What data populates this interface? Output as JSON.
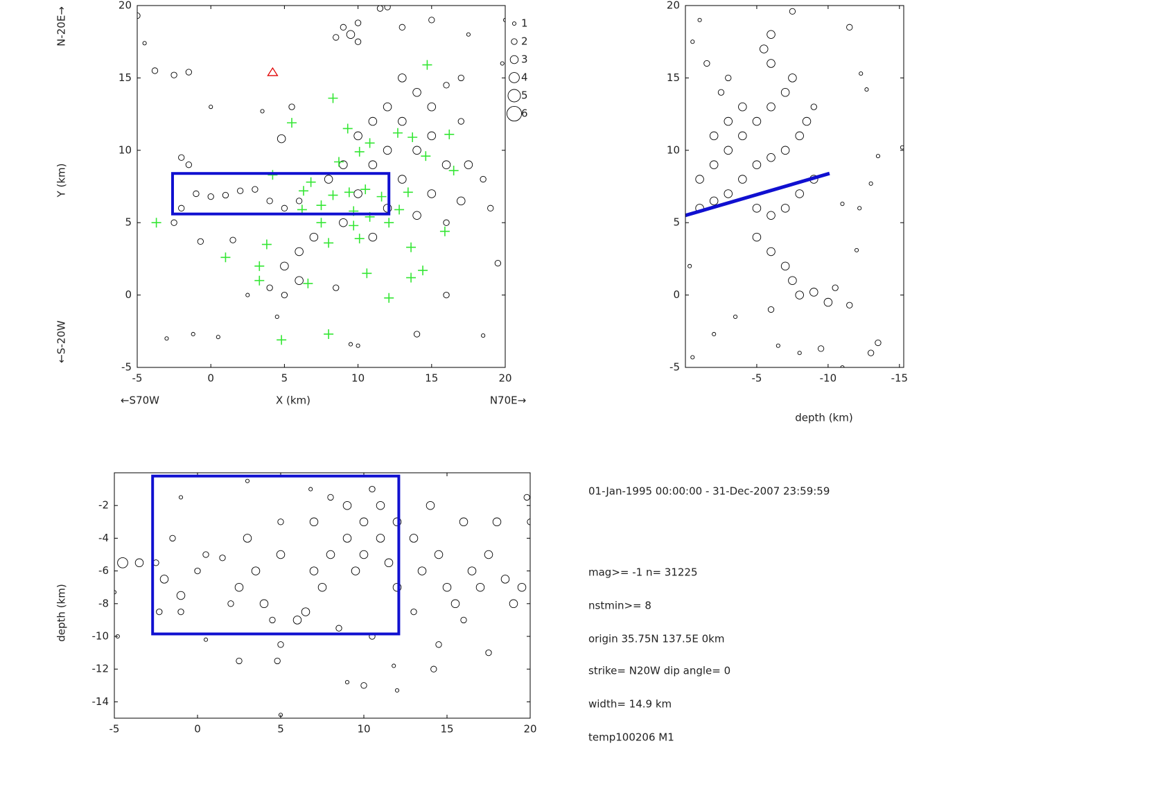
{
  "chart_data": [
    {
      "type": "scatter",
      "xlabel": "X (km)",
      "ylabel": "Y (km)",
      "x_left_label": "←S70W",
      "x_right_label": "N70E→",
      "y_top_label": "N-20E→",
      "y_bottom_label": "←S-20W",
      "xlim": [
        -5,
        20
      ],
      "ylim": [
        -5,
        20
      ],
      "xticks": [
        -5,
        0,
        5,
        10,
        15,
        20
      ],
      "yticks": [
        -5,
        0,
        5,
        10,
        15,
        20
      ],
      "legend": [
        1,
        2,
        3,
        4,
        5,
        6
      ],
      "series": [
        {
          "marker": "circle",
          "color": "#000000",
          "x": [
            9,
            9.5,
            10,
            8.5,
            10,
            11.5,
            12,
            13,
            14,
            15,
            16,
            17,
            12,
            11,
            13,
            15,
            17,
            10,
            12,
            14,
            16,
            17.5,
            18.5,
            9,
            11,
            13,
            15,
            17,
            19,
            8,
            10,
            12,
            14,
            16,
            9,
            11,
            7,
            6,
            5,
            6,
            4,
            5,
            8.5,
            10,
            9.5,
            14,
            18.5,
            16,
            19.5,
            -2,
            -1.5,
            -1,
            0,
            1,
            2,
            3,
            4,
            5,
            6,
            -2,
            -2.5,
            -5,
            -4.5,
            -3.8,
            -2.5,
            -1.5,
            0,
            3.5,
            5.5,
            4.8,
            -3,
            -1.2,
            0.5,
            1.5,
            -0.7,
            2.5,
            4.5,
            20,
            19.8,
            13,
            15,
            17.5
          ],
          "values": [
            18.5,
            18,
            17.5,
            17.8,
            18.8,
            19.8,
            19.9,
            15,
            14,
            13,
            14.5,
            15,
            13,
            12,
            12,
            11,
            12,
            11,
            10,
            10,
            9,
            9,
            8,
            9,
            9,
            8,
            7,
            6.5,
            6,
            8,
            7,
            6,
            5.5,
            5,
            5,
            4,
            4,
            3,
            2,
            1,
            0.5,
            0,
            0.5,
            -3.5,
            -3.4,
            -2.7,
            -2.8,
            0,
            2.2,
            9.5,
            9,
            7,
            6.8,
            6.9,
            7.2,
            7.3,
            6.5,
            6,
            6.5,
            6,
            5,
            19.3,
            17.4,
            15.5,
            15.2,
            15.4,
            13,
            12.7,
            13,
            10.8,
            -3,
            -2.7,
            -2.9,
            3.8,
            3.7,
            0,
            -1.5,
            19,
            16,
            18.5,
            19,
            18
          ],
          "sizes": [
            2,
            3,
            2,
            2,
            2,
            2,
            2,
            3,
            3,
            3,
            2,
            2,
            3,
            3,
            3,
            3,
            2,
            3,
            3,
            3,
            3,
            3,
            2,
            3,
            3,
            3,
            3,
            3,
            2,
            3,
            3,
            3,
            3,
            2,
            3,
            3,
            3,
            3,
            3,
            3,
            2,
            2,
            2,
            1,
            1,
            2,
            1,
            2,
            2,
            2,
            2,
            2,
            2,
            2,
            2,
            2,
            2,
            2,
            2,
            2,
            2,
            2,
            1,
            2,
            2,
            2,
            1,
            1,
            2,
            3,
            1,
            1,
            1,
            2,
            2,
            1,
            1,
            1,
            1,
            2,
            2,
            1
          ]
        },
        {
          "marker": "plus",
          "color": "#33e633",
          "x": [
            -3.7,
            1.0,
            3.3,
            3.3,
            3.8,
            4.2,
            5.5,
            6.3,
            6.2,
            6.8,
            7.5,
            7.5,
            8.0,
            8.3,
            8.3,
            8.7,
            9.3,
            9.4,
            9.7,
            9.7,
            10.1,
            10.1,
            10.5,
            10.8,
            10.8,
            11.6,
            12.1,
            12.7,
            12.8,
            13.4,
            13.7,
            14.6,
            14.7,
            16.2,
            16.5,
            15.9,
            13.6,
            13.6,
            14.4,
            12.1,
            10.6,
            6.6,
            8.0,
            4.8
          ],
          "values": [
            5.0,
            2.6,
            2.0,
            1.0,
            3.5,
            8.3,
            11.9,
            7.2,
            5.9,
            7.8,
            6.2,
            5.0,
            3.6,
            13.6,
            6.9,
            9.2,
            11.5,
            7.1,
            5.8,
            4.8,
            9.9,
            3.9,
            7.3,
            10.5,
            5.4,
            6.8,
            5.0,
            11.2,
            5.9,
            7.1,
            10.9,
            9.6,
            15.9,
            11.1,
            8.6,
            4.4,
            3.3,
            1.2,
            1.7,
            -0.2,
            1.5,
            0.8,
            -2.7,
            -3.1
          ]
        },
        {
          "marker": "triangle",
          "color": "#e00000",
          "x": [
            4.2
          ],
          "values": [
            15.4
          ]
        }
      ],
      "box": {
        "color": "#1010d0",
        "x": [
          -2.6,
          12.1
        ],
        "y": [
          5.6,
          8.4
        ]
      }
    },
    {
      "type": "scatter",
      "xlabel": "depth (km)",
      "xlim": [
        0,
        -15.3
      ],
      "ylim": [
        -5,
        20
      ],
      "xticks": [
        -5,
        -10,
        -15
      ],
      "yticks": [
        -5,
        0,
        5,
        10,
        15,
        20
      ],
      "series": [
        {
          "marker": "circle",
          "color": "#000000",
          "x": [
            -1,
            -2,
            -3,
            -4,
            -5,
            -6,
            -7,
            -7.5,
            -6,
            -5.5,
            -6,
            -7.5,
            -1,
            -2,
            -3,
            -4,
            -5,
            -6,
            -7,
            -8,
            -8.5,
            -9,
            -2,
            -3,
            -4,
            -2.5,
            -3,
            -1.5,
            -0.5,
            -1,
            -5,
            -6,
            -7,
            -8,
            -9,
            -5,
            -6,
            -7,
            -7.5,
            -8,
            -9,
            -10,
            -10.5,
            -11.5,
            -6,
            -3.5,
            -2,
            -6.5,
            -8,
            -13.5,
            -13,
            -11,
            -9.5,
            -12.7,
            -11.5,
            -12.3,
            -13.5,
            -15.2,
            -13,
            -12.2,
            -11,
            -12,
            -0.5,
            -0.3
          ],
          "values": [
            8,
            9,
            10,
            11,
            12,
            13,
            14,
            15,
            16,
            17,
            18,
            19.6,
            6,
            6.5,
            7,
            8,
            9,
            9.5,
            10,
            11,
            12,
            13,
            11,
            12,
            13,
            14,
            15,
            16,
            17.5,
            19,
            6,
            5.5,
            6,
            7,
            8,
            4,
            3,
            2,
            1,
            0,
            0.2,
            -0.5,
            0.5,
            -0.7,
            -1,
            -1.5,
            -2.7,
            -3.5,
            -4,
            -3.3,
            -4,
            -5,
            -3.7,
            14.2,
            18.5,
            15.3,
            9.6,
            10.2,
            7.7,
            6,
            6.3,
            3.1,
            -4.3,
            2
          ],
          "sizes": [
            3,
            3,
            3,
            3,
            3,
            3,
            3,
            3,
            3,
            3,
            3,
            2,
            3,
            3,
            3,
            3,
            3,
            3,
            3,
            3,
            3,
            2,
            3,
            3,
            3,
            2,
            2,
            2,
            1,
            1,
            3,
            3,
            3,
            3,
            3,
            3,
            3,
            3,
            3,
            3,
            3,
            3,
            2,
            2,
            2,
            1,
            1,
            1,
            1,
            2,
            2,
            1,
            2,
            1,
            2,
            1,
            1,
            1,
            1,
            1,
            1,
            1,
            1,
            1
          ]
        },
        {
          "marker": "line",
          "color": "#1010d0",
          "x": [
            0,
            -10.1
          ],
          "values": [
            5.5,
            8.4
          ]
        }
      ]
    },
    {
      "type": "scatter",
      "ylabel": "depth (km)",
      "xlim": [
        -5,
        20
      ],
      "ylim": [
        -15,
        0
      ],
      "xticks": [
        -5,
        0,
        5,
        10,
        15,
        20
      ],
      "yticks": [
        -2,
        -4,
        -6,
        -8,
        -10,
        -12,
        -14
      ],
      "series": [
        {
          "marker": "circle",
          "color": "#000000",
          "x": [
            -3.5,
            -2.5,
            -2,
            -1.5,
            -1,
            -1,
            0,
            0.5,
            1.5,
            2,
            2.5,
            3,
            3.5,
            4,
            4.5,
            5,
            5,
            5,
            4.8,
            6,
            6.5,
            7,
            7,
            7.5,
            8,
            8,
            8.5,
            9,
            9,
            9.5,
            10,
            10,
            10.5,
            11,
            11,
            11.5,
            12,
            12,
            13,
            13.5,
            14,
            14.5,
            15,
            15.5,
            16,
            16.5,
            17,
            17.5,
            18,
            18.5,
            19,
            19.5,
            20,
            19.8,
            16,
            14.5,
            14.2,
            17.5,
            12,
            10,
            9,
            2.5,
            -2.3,
            -4.5,
            -4.8,
            -5,
            5,
            0.5,
            -1,
            10.5,
            13,
            11.8,
            6.8,
            3
          ],
          "values": [
            -5.5,
            -5.5,
            -6.5,
            -4,
            -7.5,
            -8.5,
            -6,
            -5,
            -5.2,
            -8,
            -7,
            -4,
            -6,
            -8,
            -9,
            -3,
            -5,
            -10.5,
            -11.5,
            -9,
            -8.5,
            -3,
            -6,
            -7,
            -1.5,
            -5,
            -9.5,
            -2,
            -4,
            -6,
            -3,
            -5,
            -1,
            -2,
            -4,
            -5.5,
            -3,
            -7,
            -4,
            -6,
            -2,
            -5,
            -7,
            -8,
            -3,
            -6,
            -7,
            -5,
            -3,
            -6.5,
            -8,
            -7,
            -3,
            -1.5,
            -9,
            -10.5,
            -12,
            -11,
            -13.3,
            -13,
            -12.8,
            -11.5,
            -8.5,
            -5.5,
            -10,
            -7.3,
            -14.8,
            -10.2,
            -1.5,
            -10,
            -8.5,
            -11.8,
            -1,
            -0.5
          ],
          "sizes": [
            3,
            2,
            3,
            2,
            3,
            2,
            2,
            2,
            2,
            2,
            3,
            3,
            3,
            3,
            2,
            2,
            3,
            2,
            2,
            3,
            3,
            3,
            3,
            3,
            2,
            3,
            2,
            3,
            3,
            3,
            3,
            3,
            2,
            3,
            3,
            3,
            3,
            3,
            3,
            3,
            3,
            3,
            3,
            3,
            3,
            3,
            3,
            3,
            3,
            3,
            3,
            3,
            2,
            2,
            2,
            2,
            2,
            2,
            1,
            2,
            1,
            2,
            2,
            4,
            1,
            1,
            1,
            1,
            1,
            2,
            2,
            1,
            1,
            1
          ]
        }
      ],
      "box": {
        "color": "#1010d0",
        "x": [
          -2.7,
          12.1
        ],
        "y": [
          -9.85,
          -0.2
        ]
      }
    }
  ],
  "info": [
    "01-Jan-1995 00:00:00 - 31-Dec-2007 23:59:59",
    "mag>= -1   n= 31225",
    "nstmin>= 8",
    "origin 35.75N 137.5E 0km",
    "strike= N20W   dip angle= 0",
    "width= 14.9  km",
    "temp100206   M1"
  ]
}
